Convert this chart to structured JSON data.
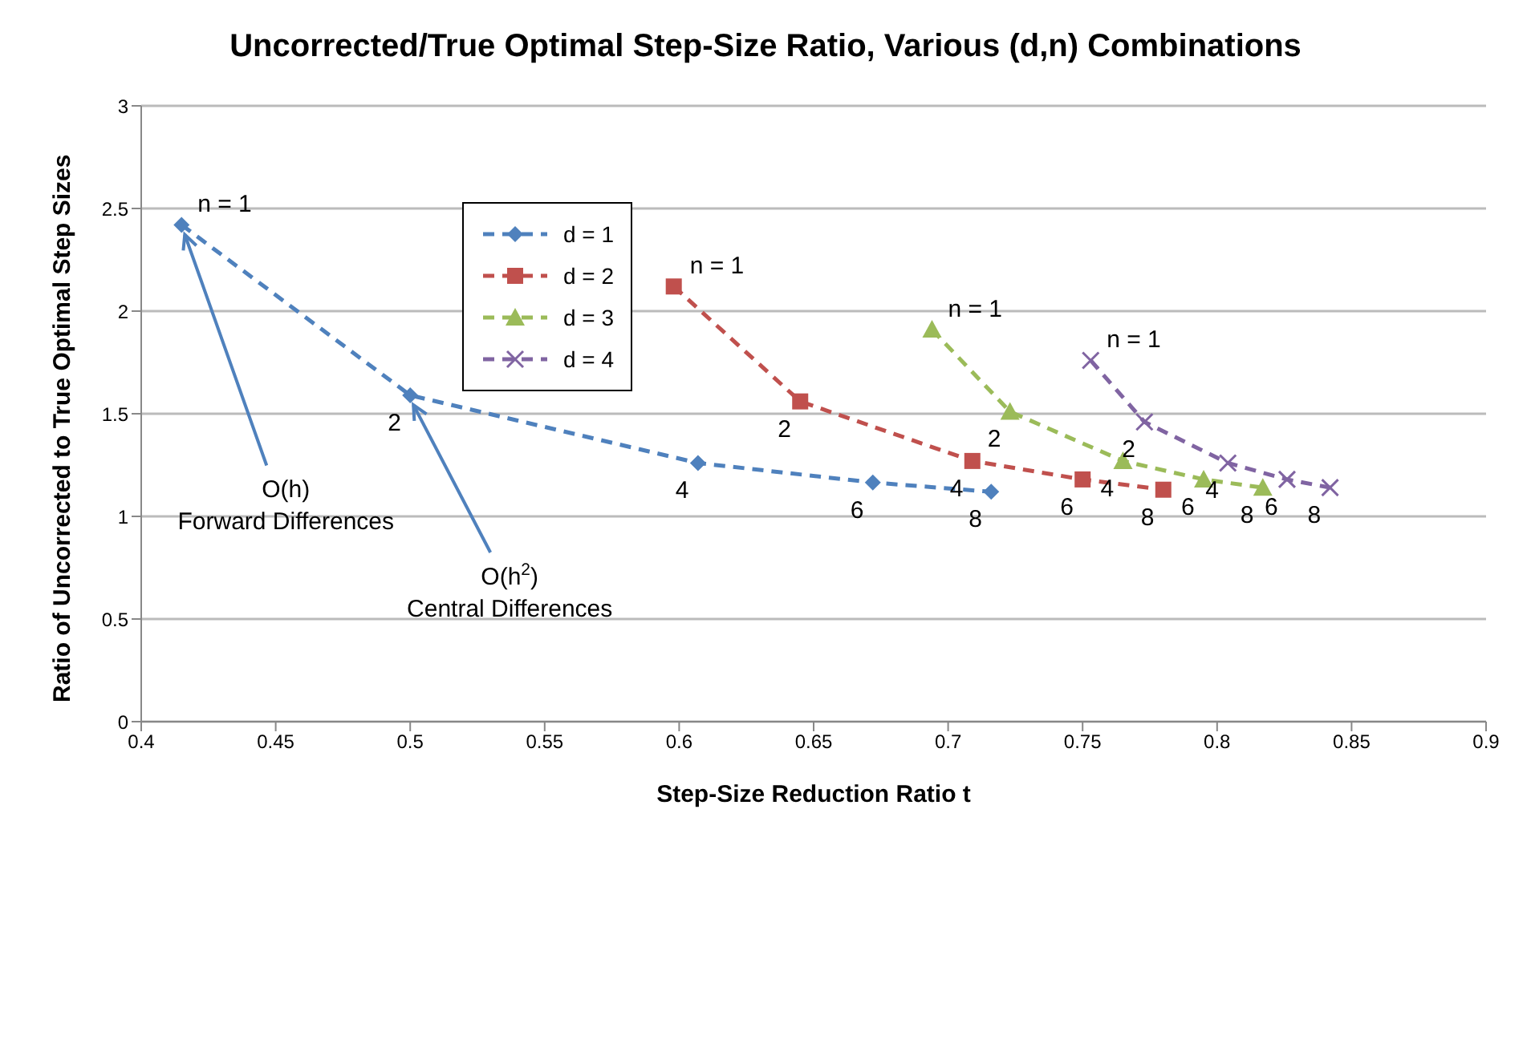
{
  "chart_data": {
    "type": "line",
    "title": "Uncorrected/True Optimal Step-Size Ratio, Various (d,n) Combinations",
    "xlabel": "Step-Size Reduction Ratio t",
    "ylabel": "Ratio of Uncorrected to True Optimal Step Sizes",
    "xlim": [
      0.4,
      0.9
    ],
    "xticks": [
      0.4,
      0.45,
      0.5,
      0.55,
      0.6,
      0.65,
      0.7,
      0.75,
      0.8,
      0.85,
      0.9
    ],
    "ylim": [
      0,
      3
    ],
    "yticks": [
      0,
      0.5,
      1,
      1.5,
      2,
      2.5,
      3
    ],
    "grid": "y",
    "legend": "top left",
    "line_style": "dashed",
    "series": [
      {
        "name": "d = 1",
        "marker": "diamond",
        "color": "#4f81bd",
        "x": [
          0.415,
          0.5,
          0.607,
          0.672,
          0.716
        ],
        "values": [
          2.42,
          1.59,
          1.26,
          1.165,
          1.12
        ]
      },
      {
        "name": "d = 2",
        "marker": "square",
        "color": "#c0504d",
        "x": [
          0.598,
          0.645,
          0.709,
          0.75,
          0.78
        ],
        "values": [
          2.12,
          1.56,
          1.27,
          1.18,
          1.13
        ]
      },
      {
        "name": "d = 3",
        "marker": "triangle",
        "color": "#9bbb59",
        "x": [
          0.694,
          0.723,
          0.765,
          0.795,
          0.817
        ],
        "values": [
          1.91,
          1.51,
          1.27,
          1.18,
          1.14
        ]
      },
      {
        "name": "d = 4",
        "marker": "cross",
        "color": "#8064a2",
        "x": [
          0.753,
          0.773,
          0.804,
          0.826,
          0.842
        ],
        "values": [
          1.76,
          1.46,
          1.26,
          1.18,
          1.14
        ]
      }
    ],
    "annotations": [
      {
        "text": "O(h)\nForward Differences",
        "x": 0.415,
        "y": 2.42
      },
      {
        "text": "O(h$^{2}$)\nCentral Differences",
        "x": 0.5,
        "y": 1.59
      },
      {
        "text": "n = 1",
        "x": 0.415,
        "y": 2.42
      },
      {
        "text": "2",
        "x": 0.5,
        "y": 1.59
      },
      {
        "text": "4",
        "x": 0.607,
        "y": 1.26
      },
      {
        "text": "6",
        "x": 0.672,
        "y": 1.165
      },
      {
        "text": "8",
        "x": 0.716,
        "y": 1.12
      },
      {
        "text": "n = 1",
        "x": 0.598,
        "y": 2.12
      },
      {
        "text": "2",
        "x": 0.645,
        "y": 1.56
      },
      {
        "text": "4",
        "x": 0.709,
        "y": 1.27
      },
      {
        "text": "6",
        "x": 0.75,
        "y": 1.18
      },
      {
        "text": "8",
        "x": 0.78,
        "y": 1.13
      },
      {
        "text": "n = 1",
        "x": 0.694,
        "y": 1.91
      },
      {
        "text": "2",
        "x": 0.723,
        "y": 1.51
      },
      {
        "text": "4",
        "x": 0.765,
        "y": 1.27
      },
      {
        "text": "6",
        "x": 0.795,
        "y": 1.18
      },
      {
        "text": "8",
        "x": 0.817,
        "y": 1.14
      },
      {
        "text": "n = 1",
        "x": 0.753,
        "y": 1.76
      },
      {
        "text": "2",
        "x": 0.773,
        "y": 1.46
      },
      {
        "text": "4",
        "x": 0.804,
        "y": 1.26
      },
      {
        "text": "6",
        "x": 0.826,
        "y": 1.18
      },
      {
        "text": "8",
        "x": 0.842,
        "y": 1.14
      }
    ]
  }
}
